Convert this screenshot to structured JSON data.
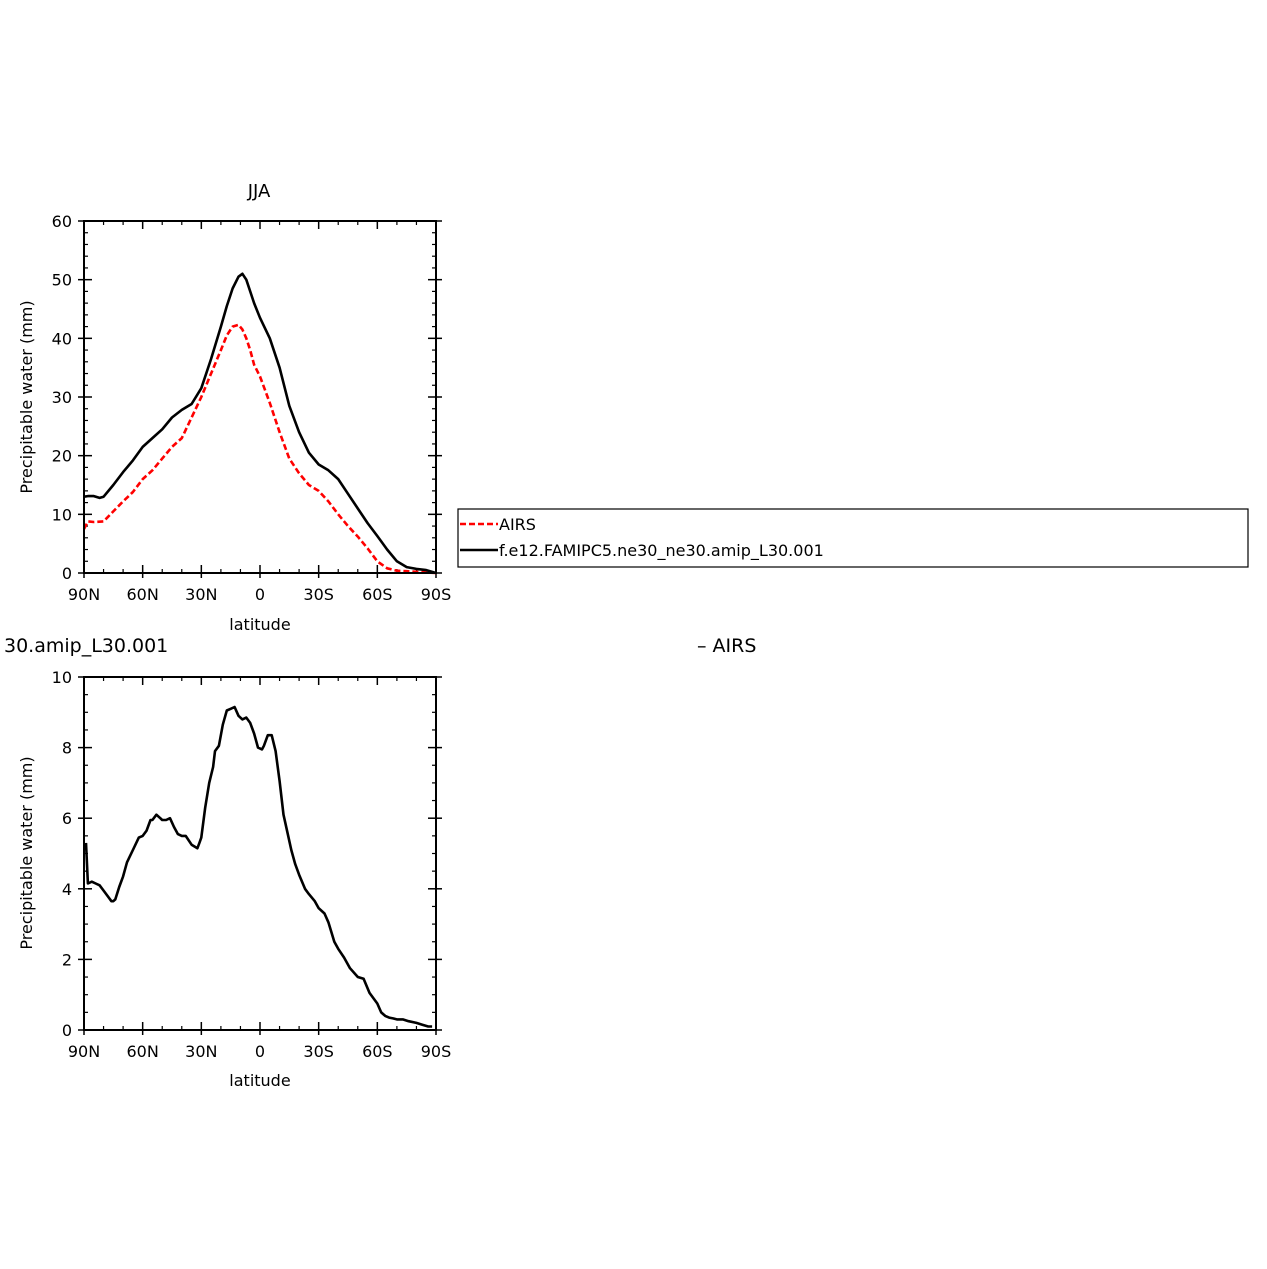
{
  "chart_data": [
    {
      "type": "line",
      "title": "JJA",
      "xlabel": "latitude",
      "ylabel": "Precipitable water (mm)",
      "xlim": [
        90,
        -90
      ],
      "ylim": [
        0,
        60
      ],
      "x_ticks": [
        90,
        60,
        30,
        0,
        -30,
        -60,
        -90
      ],
      "x_tick_labels": [
        "90N",
        "60N",
        "30N",
        "0",
        "30S",
        "60S",
        "90S"
      ],
      "y_ticks": [
        0,
        10,
        20,
        30,
        40,
        50,
        60
      ],
      "y_tick_labels": [
        "0",
        "10",
        "20",
        "30",
        "40",
        "50",
        "60"
      ],
      "legend": {
        "placement": "right",
        "entries": [
          "AIRS",
          "f.e12.FAMIPC5.ne30_ne30.amip_L30.001"
        ]
      },
      "series": [
        {
          "name": "AIRS",
          "color": "#ff0000",
          "dash": "dashed",
          "x": [
            90,
            88,
            85,
            80,
            75,
            70,
            65,
            60,
            55,
            50,
            45,
            40,
            35,
            30,
            25,
            20,
            17,
            14,
            11,
            9,
            7,
            5,
            3,
            0,
            -5,
            -10,
            -15,
            -20,
            -25,
            -30,
            -35,
            -40,
            -45,
            -50,
            -55,
            -60,
            -65,
            -70,
            -75,
            -80,
            -85,
            -90
          ],
          "values": [
            7.5,
            8.8,
            8.7,
            8.8,
            10.5,
            12.2,
            13.8,
            16.0,
            17.5,
            19.5,
            21.5,
            23.0,
            26.5,
            30.0,
            34.0,
            38.0,
            40.5,
            42.0,
            42.3,
            41.5,
            40.0,
            38.0,
            35.5,
            33.5,
            29.0,
            24.0,
            19.5,
            17.0,
            15.0,
            14.0,
            12.2,
            10.0,
            8.0,
            6.2,
            4.2,
            2.0,
            0.8,
            0.4,
            0.3,
            0.2,
            0.1,
            0.0
          ]
        },
        {
          "name": "f.e12.FAMIPC5.ne30_ne30.amip_L30.001",
          "color": "#000000",
          "dash": "solid",
          "x": [
            90,
            88,
            85,
            82,
            80,
            75,
            70,
            65,
            60,
            55,
            50,
            45,
            40,
            35,
            30,
            25,
            20,
            17,
            14,
            11,
            9,
            7,
            5,
            3,
            0,
            -5,
            -10,
            -15,
            -20,
            -25,
            -30,
            -35,
            -40,
            -45,
            -50,
            -55,
            -60,
            -65,
            -70,
            -75,
            -80,
            -85,
            -90
          ],
          "values": [
            13.0,
            13.1,
            13.1,
            12.8,
            13.0,
            15.0,
            17.2,
            19.2,
            21.5,
            23.0,
            24.5,
            26.5,
            27.8,
            28.8,
            31.5,
            36.5,
            42.0,
            45.5,
            48.5,
            50.5,
            51.0,
            50.0,
            48.0,
            46.0,
            43.5,
            40.0,
            35.0,
            28.5,
            24.0,
            20.5,
            18.5,
            17.5,
            16.0,
            13.5,
            11.0,
            8.5,
            6.3,
            4.0,
            2.0,
            1.0,
            0.7,
            0.5,
            0.0
          ]
        }
      ]
    },
    {
      "type": "line",
      "title_fragment_left": "30.amip_L30.001",
      "title_fragment_right": "– AIRS",
      "xlabel": "latitude",
      "ylabel": "Precipitable water (mm)",
      "xlim": [
        90,
        -90
      ],
      "ylim": [
        0,
        10
      ],
      "x_ticks": [
        90,
        60,
        30,
        0,
        -30,
        -60,
        -90
      ],
      "x_tick_labels": [
        "90N",
        "60N",
        "30N",
        "0",
        "30S",
        "60S",
        "90S"
      ],
      "y_ticks": [
        0,
        2,
        4,
        6,
        8,
        10
      ],
      "y_tick_labels": [
        "0",
        "2",
        "4",
        "6",
        "8",
        "10"
      ],
      "series": [
        {
          "color": "#000000",
          "dash": "solid",
          "x": [
            89,
            88,
            86,
            84,
            82,
            80,
            78,
            76,
            75,
            74,
            72,
            70,
            68,
            65,
            62,
            60,
            58,
            56,
            55,
            53,
            51,
            50,
            48,
            46,
            44,
            42,
            40,
            38,
            35,
            32,
            31,
            30,
            28,
            26,
            24,
            23,
            21,
            19,
            17,
            15,
            13,
            11,
            9,
            7,
            5,
            3,
            1,
            -1,
            -2,
            -4,
            -6,
            -8,
            -10,
            -12,
            -14,
            -16,
            -18,
            -20,
            -23,
            -25,
            -28,
            -30,
            -33,
            -35,
            -38,
            -40,
            -43,
            -46,
            -50,
            -53,
            -56,
            -60,
            -62,
            -64,
            -66,
            -68,
            -70,
            -73,
            -76,
            -80,
            -83,
            -86,
            -88
          ],
          "values": [
            5.3,
            4.15,
            4.2,
            4.15,
            4.1,
            3.95,
            3.8,
            3.65,
            3.65,
            3.7,
            4.05,
            4.35,
            4.75,
            5.1,
            5.45,
            5.5,
            5.65,
            5.95,
            5.95,
            6.1,
            6.0,
            5.95,
            5.95,
            6.0,
            5.75,
            5.55,
            5.5,
            5.5,
            5.25,
            5.15,
            5.3,
            5.45,
            6.3,
            7.0,
            7.45,
            7.9,
            8.05,
            8.65,
            9.05,
            9.1,
            9.15,
            8.9,
            8.8,
            8.85,
            8.7,
            8.4,
            8.0,
            7.95,
            8.05,
            8.35,
            8.35,
            7.9,
            7.05,
            6.1,
            5.6,
            5.1,
            4.7,
            4.4,
            4.0,
            3.85,
            3.65,
            3.45,
            3.3,
            3.05,
            2.5,
            2.3,
            2.05,
            1.75,
            1.5,
            1.45,
            1.05,
            0.75,
            0.5,
            0.4,
            0.35,
            0.33,
            0.3,
            0.3,
            0.25,
            0.2,
            0.15,
            0.1,
            0.1
          ]
        }
      ]
    }
  ]
}
